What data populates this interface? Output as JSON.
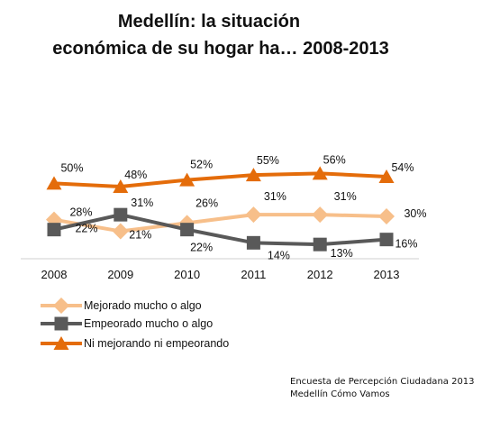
{
  "chart_data": {
    "type": "line",
    "title_lines": [
      "Medellín: la situación",
      "económica de su hogar ha… 2008-2013"
    ],
    "categories": [
      "2008",
      "2009",
      "2010",
      "2011",
      "2012",
      "2013"
    ],
    "ylim": [
      0,
      60
    ],
    "unit": "%",
    "grid": false,
    "legend_position": "bottom-left",
    "series": [
      {
        "name": "Mejorado mucho o algo",
        "marker": "diamond",
        "color": "#f7bf8a",
        "values": [
          28,
          21,
          26,
          31,
          31,
          30
        ]
      },
      {
        "name": "Empeorado mucho o algo",
        "marker": "square",
        "color": "#595959",
        "values": [
          22,
          31,
          22,
          14,
          13,
          16
        ]
      },
      {
        "name": "Ni mejorando ni empeorando",
        "marker": "triangle",
        "color": "#e46c0a",
        "values": [
          50,
          48,
          52,
          55,
          56,
          54
        ]
      }
    ],
    "data_labels": {
      "Mejorado mucho o algo": [
        "28%",
        "21%",
        "26%",
        "31%",
        "31%",
        "30%"
      ],
      "Empeorado mucho o algo": [
        "22%",
        "31%",
        "22%",
        "14%",
        "13%",
        "16%"
      ],
      "Ni mejorando ni empeorando": [
        "50%",
        "48%",
        "52%",
        "55%",
        "56%",
        "54%"
      ]
    },
    "source": [
      "Encuesta de Percepción Ciudadana 2013",
      "Medellín Cómo Vamos"
    ]
  }
}
